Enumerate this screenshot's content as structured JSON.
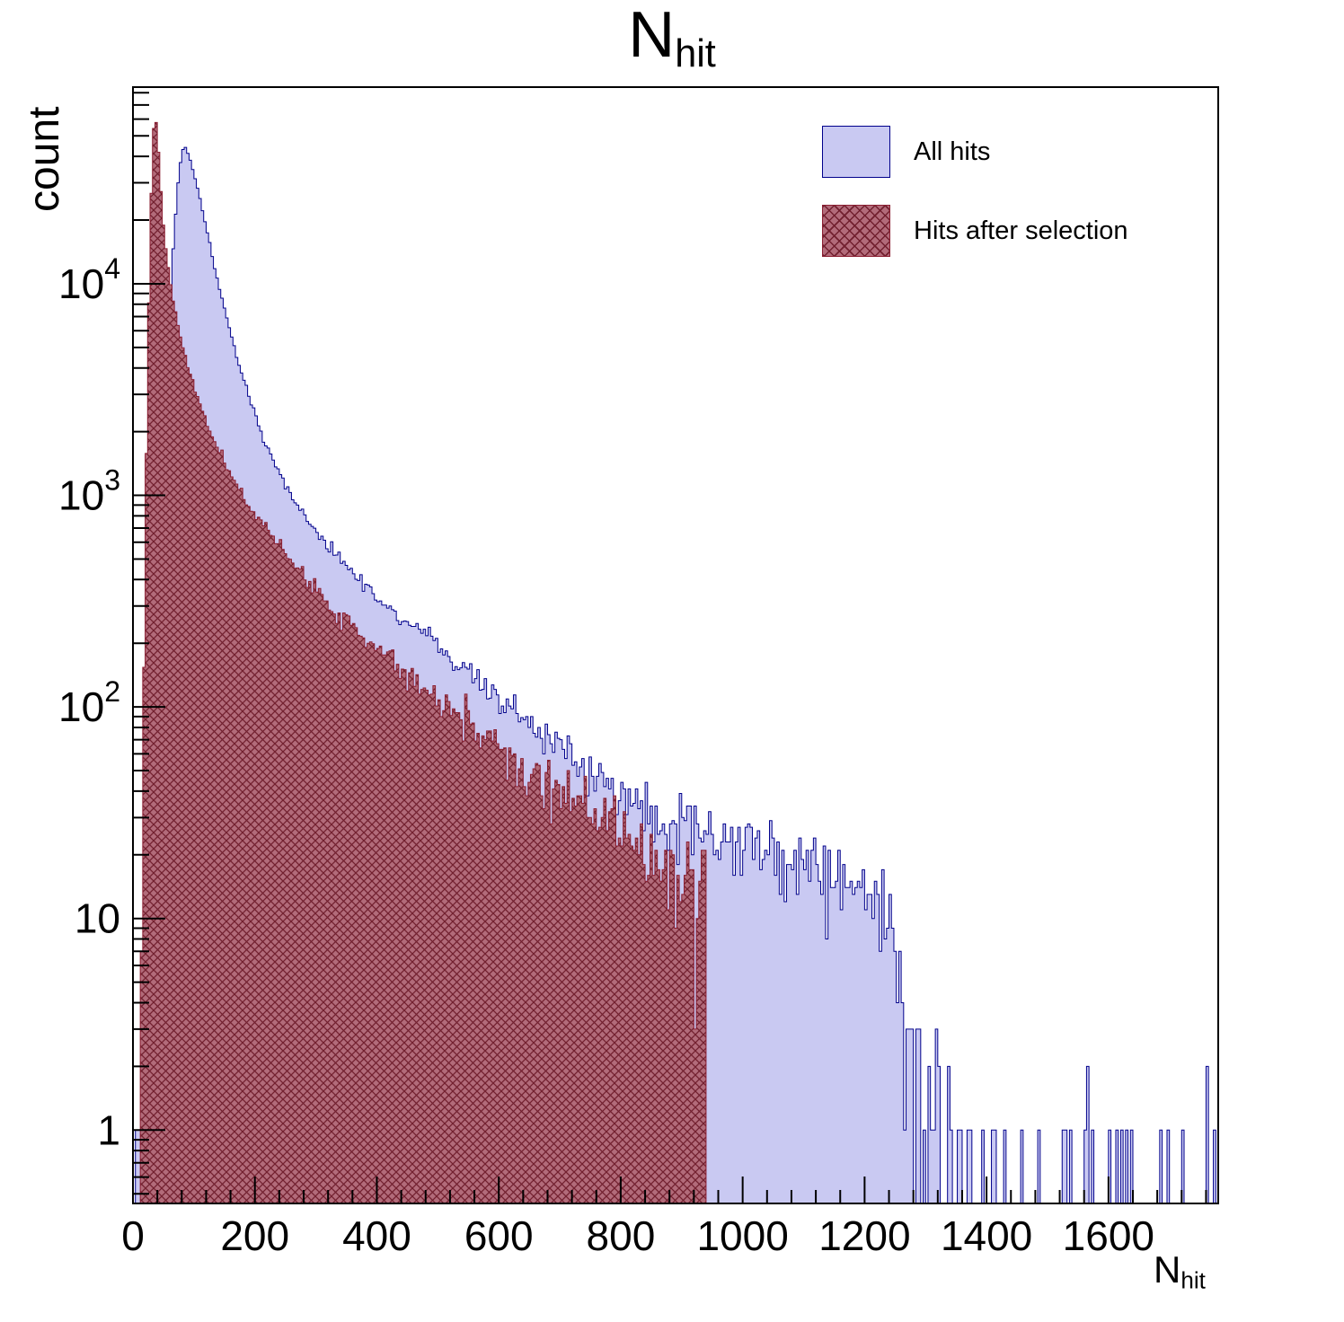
{
  "title": {
    "main": "N",
    "sub": "hit"
  },
  "axes": {
    "y_label": "count",
    "x_label_main": "N",
    "x_label_sub": "hit",
    "x_ticks": [
      0,
      200,
      400,
      600,
      800,
      1000,
      1200,
      1400,
      1600
    ],
    "y_ticks": [
      {
        "label": "1",
        "value": 1
      },
      {
        "label": "10",
        "value": 10
      },
      {
        "base": "10",
        "exp": "2",
        "value": 100
      },
      {
        "base": "10",
        "exp": "3",
        "value": 1000
      },
      {
        "base": "10",
        "exp": "4",
        "value": 10000
      }
    ]
  },
  "legend": {
    "items": [
      {
        "label": "All hits",
        "swatch": "all"
      },
      {
        "label": "Hits after selection",
        "swatch": "selected"
      }
    ]
  },
  "chart_data": {
    "type": "histogram",
    "title": "N_hit",
    "xlabel": "N_hit",
    "ylabel": "count",
    "log_y": true,
    "x_range": [
      0,
      1780
    ],
    "y_range": [
      0.45,
      85000
    ],
    "bin_width": 4,
    "grid": false,
    "legend_position": "top-right",
    "series": [
      {
        "name": "All hits",
        "fill": "#c9c9f2",
        "line": "#00008b",
        "hatch": false,
        "points_x": [
          2,
          4,
          8,
          14,
          25,
          40,
          50,
          58,
          66,
          74,
          80,
          86,
          92,
          100,
          110,
          120,
          135,
          150,
          165,
          180,
          200,
          220,
          240,
          260,
          280,
          300,
          330,
          360,
          400,
          440,
          480,
          520,
          560,
          600,
          650,
          700,
          750,
          800,
          850,
          900,
          950,
          1000,
          1040,
          1080,
          1120,
          1160,
          1200,
          1230,
          1250,
          1265,
          1280,
          1300,
          1330,
          1380,
          1450,
          1550,
          1650,
          1720,
          1780
        ],
        "points_y": [
          0.2,
          2.5,
          0.4,
          0.5,
          4,
          120,
          1500,
          6000,
          15000,
          30000,
          42000,
          44000,
          40000,
          33000,
          25000,
          18500,
          11500,
          7600,
          5200,
          3600,
          2400,
          1700,
          1280,
          1000,
          820,
          680,
          530,
          430,
          330,
          265,
          215,
          175,
          140,
          112,
          86,
          64,
          50,
          40,
          33,
          28,
          24,
          22,
          20,
          18,
          16,
          14,
          12.5,
          11,
          7,
          4,
          2.2,
          1.1,
          0.6,
          0.45,
          0.3,
          0.2,
          0.22,
          0.25,
          0.1
        ]
      },
      {
        "name": "Hits after selection",
        "fill": "#b26b7a",
        "hatch_color": "#72202f",
        "line": "#8b1f32",
        "hatch": true,
        "points_x": [
          8,
          12,
          16,
          20,
          24,
          28,
          32,
          36,
          40,
          45,
          50,
          56,
          62,
          70,
          80,
          90,
          100,
          115,
          130,
          145,
          160,
          180,
          200,
          225,
          250,
          280,
          310,
          350,
          400,
          450,
          500,
          550,
          600,
          650,
          700,
          750,
          800,
          850,
          900,
          940
        ],
        "points_y": [
          0.3,
          3,
          40,
          600,
          4000,
          16000,
          45000,
          65000,
          52000,
          30000,
          19000,
          13000,
          9800,
          7200,
          5300,
          4100,
          3300,
          2450,
          1900,
          1520,
          1250,
          1000,
          830,
          650,
          520,
          405,
          325,
          248,
          185,
          142,
          110,
          85,
          66,
          51,
          40,
          31,
          25,
          20,
          16.5,
          14
        ]
      }
    ]
  }
}
